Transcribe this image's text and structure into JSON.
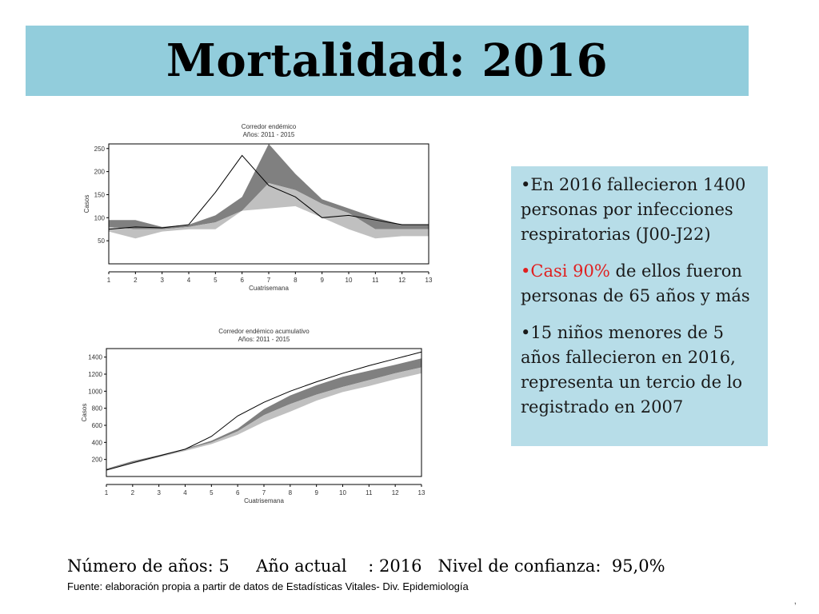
{
  "header": {
    "title": "Mortalidad: 2016"
  },
  "info": {
    "b1": "•En 2016 fallecieron 1400 personas por infecciones respiratorias (J00-J22)",
    "b2_red": "•Casi 90%",
    "b2_rest": " de ellos fueron personas de 65 años y más",
    "b3": "•15 niños menores de 5 años fallecieron en 2016, representa un tercio de lo registrado en 2007"
  },
  "footer": {
    "stats": "Número de años: 5     Año actual    : 2016   Nivel de confianza:  95,0%",
    "source": "Fuente: elaboración propia a partir de datos de Estadísticas Vitales- Div. Epidemiología",
    "mark": ","
  },
  "colors": {
    "title_bg": "#92cddc",
    "box_bg": "#b7dde8",
    "band_dark": "#808080",
    "band_light": "#c0c0c0"
  },
  "chart_data": [
    {
      "type": "area",
      "title": "Corredor endémico",
      "subtitle": "Años: 2011 - 2015",
      "xlabel": "Cuatrisemana",
      "ylabel": "Casos",
      "x": [
        1,
        2,
        3,
        4,
        5,
        6,
        7,
        8,
        9,
        10,
        11,
        12,
        13
      ],
      "ylim": [
        0,
        260
      ],
      "yticks": [
        50,
        100,
        150,
        200,
        250
      ],
      "series": [
        {
          "role": "lower",
          "values": [
            70,
            55,
            70,
            75,
            75,
            115,
            120,
            125,
            100,
            75,
            55,
            60,
            60
          ]
        },
        {
          "role": "median",
          "values": [
            80,
            75,
            75,
            80,
            90,
            115,
            175,
            160,
            130,
            110,
            75,
            75,
            75
          ]
        },
        {
          "role": "upper",
          "values": [
            95,
            95,
            80,
            85,
            105,
            145,
            260,
            195,
            140,
            120,
            100,
            85,
            85
          ]
        },
        {
          "role": "actual",
          "values": [
            75,
            80,
            78,
            85,
            155,
            235,
            170,
            145,
            100,
            105,
            95,
            85,
            85
          ]
        }
      ]
    },
    {
      "type": "area",
      "title": "Corredor endémico acumulativo",
      "subtitle": "Años: 2011 - 2015",
      "xlabel": "Cuatrisemana",
      "ylabel": "Casos",
      "x": [
        1,
        2,
        3,
        4,
        5,
        6,
        7,
        8,
        9,
        10,
        11,
        12,
        13
      ],
      "ylim": [
        0,
        1500
      ],
      "yticks": [
        200,
        400,
        600,
        800,
        1000,
        1200,
        1400
      ],
      "series": [
        {
          "role": "lower",
          "values": [
            70,
            150,
            225,
            300,
            380,
            490,
            640,
            760,
            890,
            990,
            1060,
            1140,
            1210
          ]
        },
        {
          "role": "median",
          "values": [
            80,
            165,
            240,
            315,
            400,
            530,
            720,
            850,
            960,
            1050,
            1130,
            1210,
            1280
          ]
        },
        {
          "role": "upper",
          "values": [
            90,
            180,
            250,
            325,
            420,
            560,
            790,
            950,
            1070,
            1170,
            1240,
            1310,
            1385
          ]
        },
        {
          "role": "actual",
          "values": [
            75,
            160,
            240,
            320,
            470,
            710,
            870,
            1000,
            1110,
            1210,
            1300,
            1380,
            1460
          ]
        }
      ]
    }
  ]
}
